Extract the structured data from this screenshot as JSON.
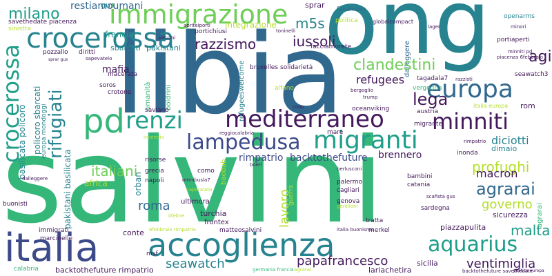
{
  "palette": {
    "background": "#ffffff",
    "dark_purple": "#44195c",
    "indigo": "#3d4a89",
    "blue": "#31688e",
    "teal": "#26838f",
    "green_teal": "#1f9e89",
    "green": "#35b779",
    "light_green": "#6ece58",
    "lime": "#b5de2b",
    "yellow": "#fde725"
  },
  "words": [
    "salvini",
    "libia",
    "ong",
    "accoglienza",
    "italia",
    "immigrazione",
    "mediterraneo",
    "europa",
    "pd",
    "renzi",
    "lampedusa",
    "migranti",
    "aquarius",
    "minniti",
    "crocerossa",
    "ue",
    "milano",
    "rifugiati",
    "clandestini",
    "profughi",
    "italiani",
    "agrarai",
    "razzismo",
    "iussoli",
    "m5s",
    "agi",
    "lega",
    "refugees",
    "papafrancesco",
    "ventimiglia",
    "seawatch",
    "malta",
    "diciotti",
    "macron",
    "governo",
    "roma",
    "lavoro",
    "rimpatrio",
    "backtothefuture",
    "brennero",
    "mafia",
    "integrazione",
    "restiamoumani",
    "gus",
    "sprar",
    "francia",
    "sbarcati",
    "pakistani",
    "fakenews",
    "politica",
    "openarms",
    "dimaio",
    "sicurezza",
    "piazzapulita",
    "lariachetira",
    "sicilia",
    "calabria",
    "conte",
    "pozzallo",
    "napoli",
    "grecia",
    "africa",
    "turchia",
    "frontex",
    "ultimora",
    "genova",
    "palermo",
    "catania",
    "bambini",
    "sardegna",
    "tratta",
    "merkel",
    "immigrati",
    "marcinelle",
    "buonisti",
    "msf",
    "seawatch3",
    "crotone",
    "saviano",
    "austria",
    "oceanviking",
    "rom",
    "bruxelles",
    "solidarietà",
    "alfano",
    "portichiusi",
    "refugeeswelcome",
    "facciamorete",
    "vergogna",
    "bergoglio",
    "migrante",
    "inonda",
    "mare",
    "coop",
    "acquarius",
    "umanità",
    "boldrini",
    "macerata",
    "soros",
    "diritti",
    "risorse",
    "orban",
    "rimpatrio",
    "backtothefuture rimpatrio",
    "europa mondoggi",
    "policoro sbarcati",
    "pakistani basilicata",
    "basilicata policoro",
    "sapevatelo",
    "germania francia",
    "piazzapulita",
    "matteosalvini",
    "caporalato",
    "africa",
    "lifeline",
    "baobab",
    "omnibusla7",
    "como",
    "boeri",
    "berlusconi",
    "cagliari",
    "gentiloni",
    "scafista gus",
    "trump",
    "globalcompact",
    "lager",
    "minori",
    "dalleggere",
    "portiaperti",
    "italia europa",
    "apriteiporti",
    "vaccini",
    "toninelli",
    "savethedate piacenza",
    "sinistra",
    "sprar gus",
    "italia buonismo",
    "6febbraio rimpatrio",
    "piacenza 6febbraio",
    "minniti pd",
    "tagadala7",
    "razzisti",
    "backtothefuture savethedate",
    "politica europa",
    "noborder",
    "lavoro",
    "agrarai",
    "incendio",
    "guerra",
    "reggiocalabria",
    "dirittiumani"
  ],
  "sizes_scale": "word frequency"
}
